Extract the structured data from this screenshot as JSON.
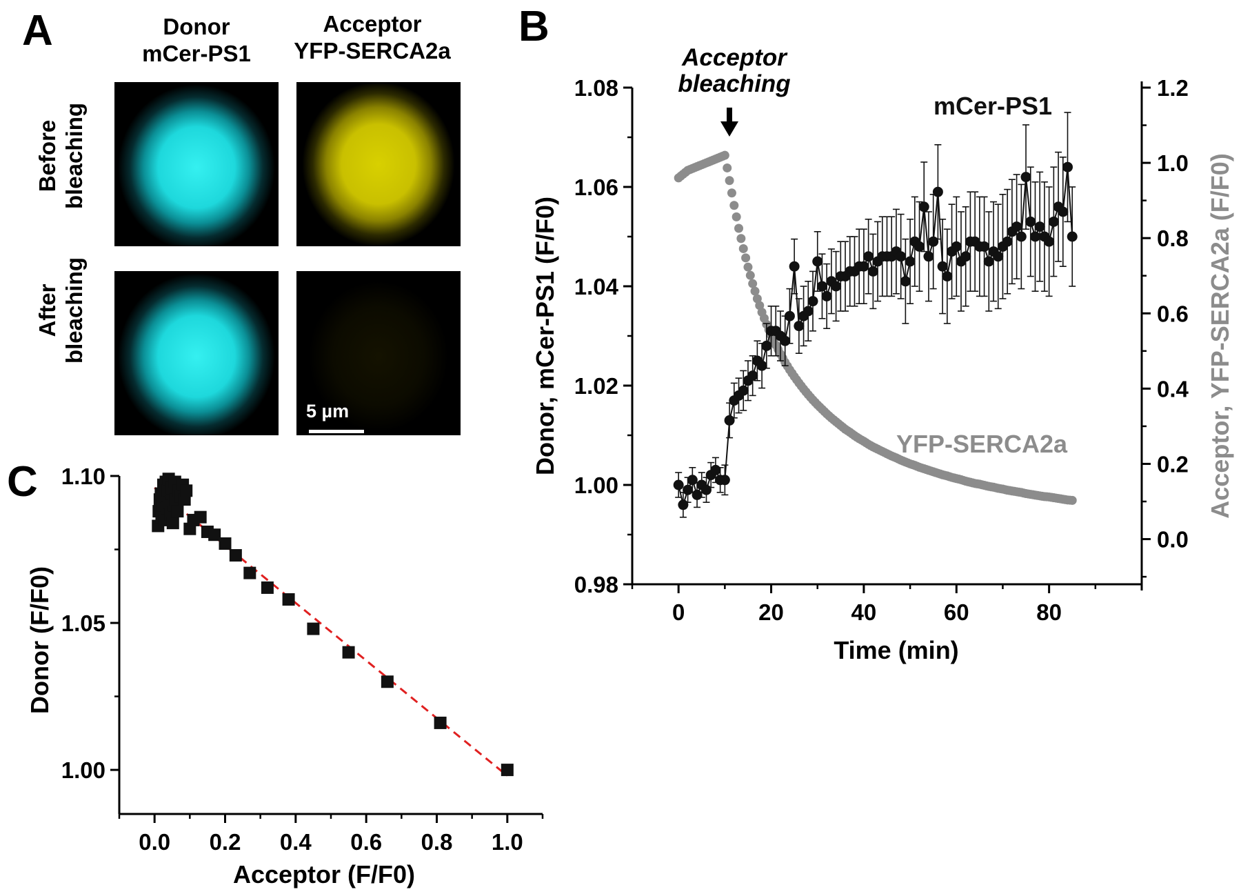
{
  "panel_a": {
    "letter": "A",
    "col_donor_line1": "Donor",
    "col_donor_line2": "mCer-PS1",
    "col_acceptor_line1": "Acceptor",
    "col_acceptor_line2": "YFP-SERCA2a",
    "row_before_line1": "Before",
    "row_before_line2": "bleaching",
    "row_after_line1": "After",
    "row_after_line2": "bleaching",
    "scalebar_label": "5 µm",
    "colors": {
      "donor": "#22e4e8",
      "acceptor": "#c8c000"
    }
  },
  "panel_b_letter": "B",
  "panel_c_letter": "C",
  "chart_data": [
    {
      "id": "B",
      "type": "scatter",
      "xlabel": "Time (min)",
      "ylabel": "Donor, mCer-PS1 (F/F0)",
      "y2label": "Acceptor, YFP-SERCA2a (F/F0)",
      "xlim": [
        -10,
        100
      ],
      "ylim": [
        0.98,
        1.08
      ],
      "y2lim": [
        -0.12,
        1.2
      ],
      "xticks": [
        0,
        20,
        40,
        60,
        80
      ],
      "xtick_labels": [
        "0",
        "20",
        "40",
        "60",
        "80"
      ],
      "yticks": [
        0.98,
        1.0,
        1.02,
        1.04,
        1.06,
        1.08
      ],
      "ytick_labels": [
        "0.98",
        "1.00",
        "1.02",
        "1.04",
        "1.06",
        "1.08"
      ],
      "y2ticks": [
        0.0,
        0.2,
        0.4,
        0.6,
        0.8,
        1.0,
        1.2
      ],
      "y2tick_labels": [
        "0.0",
        "0.2",
        "0.4",
        "0.6",
        "0.8",
        "1.0",
        "1.2"
      ],
      "annotation_line1": "Acceptor",
      "annotation_line2": "bleaching",
      "annotation_x": 10,
      "label_donor": "mCer-PS1",
      "label_acceptor": "YFP-SERCA2a",
      "colors": {
        "donor": "#111111",
        "acceptor": "#8c8c8c"
      },
      "series": [
        {
          "name": "mCer-PS1",
          "axis": "left",
          "x": [
            0,
            1,
            2,
            3,
            4,
            5,
            6,
            7,
            8,
            9,
            10,
            11,
            12,
            13,
            14,
            15,
            16,
            17,
            18,
            19,
            20,
            21,
            22,
            23,
            24,
            25,
            26,
            27,
            28,
            29,
            30,
            31,
            32,
            33,
            34,
            35,
            36,
            37,
            38,
            39,
            40,
            41,
            42,
            43,
            44,
            45,
            46,
            47,
            48,
            49,
            50,
            51,
            52,
            53,
            54,
            55,
            56,
            57,
            58,
            59,
            60,
            61,
            62,
            63,
            64,
            65,
            66,
            67,
            68,
            69,
            70,
            71,
            72,
            73,
            74,
            75,
            76,
            77,
            78,
            79,
            80,
            81,
            82,
            83,
            84,
            85
          ],
          "y": [
            1.0,
            0.996,
            0.999,
            1.001,
            0.998,
            1.0,
            0.999,
            1.002,
            1.003,
            1.001,
            1.001,
            1.013,
            1.017,
            1.018,
            1.019,
            1.021,
            1.022,
            1.025,
            1.024,
            1.028,
            1.031,
            1.031,
            1.03,
            1.029,
            1.034,
            1.044,
            1.032,
            1.034,
            1.035,
            1.037,
            1.045,
            1.04,
            1.038,
            1.041,
            1.04,
            1.042,
            1.042,
            1.043,
            1.043,
            1.044,
            1.044,
            1.046,
            1.043,
            1.045,
            1.046,
            1.046,
            1.046,
            1.047,
            1.046,
            1.041,
            1.045,
            1.049,
            1.048,
            1.056,
            1.046,
            1.049,
            1.059,
            1.044,
            1.042,
            1.047,
            1.048,
            1.045,
            1.046,
            1.049,
            1.049,
            1.048,
            1.048,
            1.045,
            1.047,
            1.046,
            1.048,
            1.049,
            1.051,
            1.052,
            1.05,
            1.062,
            1.053,
            1.05,
            1.052,
            1.05,
            1.049,
            1.053,
            1.056,
            1.055,
            1.064,
            1.05
          ],
          "err": [
            0.0025,
            0.0025,
            0.0025,
            0.0025,
            0.0025,
            0.0025,
            0.0025,
            0.0025,
            0.0025,
            0.0025,
            0.003,
            0.0035,
            0.0035,
            0.0035,
            0.004,
            0.004,
            0.004,
            0.004,
            0.0045,
            0.0045,
            0.005,
            0.005,
            0.005,
            0.005,
            0.0055,
            0.0055,
            0.0055,
            0.006,
            0.006,
            0.006,
            0.006,
            0.0065,
            0.0065,
            0.0065,
            0.007,
            0.007,
            0.007,
            0.007,
            0.007,
            0.0075,
            0.0075,
            0.0075,
            0.0075,
            0.008,
            0.008,
            0.008,
            0.008,
            0.0085,
            0.0085,
            0.0085,
            0.0085,
            0.009,
            0.009,
            0.009,
            0.009,
            0.0095,
            0.0095,
            0.0095,
            0.0095,
            0.0095,
            0.01,
            0.01,
            0.01,
            0.01,
            0.01,
            0.01,
            0.01,
            0.01,
            0.01,
            0.0105,
            0.0105,
            0.0105,
            0.0105,
            0.0105,
            0.0105,
            0.0105,
            0.011,
            0.011,
            0.011,
            0.011,
            0.011,
            0.011,
            0.011,
            0.011,
            0.011,
            0.01
          ]
        },
        {
          "name": "YFP-SERCA2a",
          "axis": "right",
          "x": [
            0,
            1,
            2,
            3,
            4,
            5,
            6,
            7,
            8,
            9,
            10,
            11,
            12,
            13,
            14,
            15,
            16,
            17,
            18,
            19,
            20,
            21,
            22,
            23,
            24,
            25,
            26,
            27,
            28,
            29,
            30,
            31,
            32,
            33,
            34,
            35,
            36,
            37,
            38,
            39,
            40,
            41,
            42,
            43,
            44,
            45,
            46,
            47,
            48,
            49,
            50,
            51,
            52,
            53,
            54,
            55,
            56,
            57,
            58,
            59,
            60,
            61,
            62,
            63,
            64,
            65,
            66,
            67,
            68,
            69,
            70,
            71,
            72,
            73,
            74,
            75,
            76,
            77,
            78,
            79,
            80,
            81,
            82,
            83,
            84,
            85
          ],
          "y": [
            0.96,
            0.97,
            0.98,
            0.985,
            0.99,
            0.995,
            1.0,
            1.005,
            1.01,
            1.015,
            1.02,
            0.953,
            0.887,
            0.826,
            0.772,
            0.723,
            0.679,
            0.639,
            0.603,
            0.571,
            0.542,
            0.516,
            0.492,
            0.47,
            0.45,
            0.432,
            0.415,
            0.399,
            0.384,
            0.37,
            0.357,
            0.345,
            0.333,
            0.322,
            0.312,
            0.302,
            0.292,
            0.284,
            0.275,
            0.267,
            0.26,
            0.252,
            0.245,
            0.239,
            0.233,
            0.227,
            0.221,
            0.216,
            0.21,
            0.205,
            0.2,
            0.196,
            0.191,
            0.187,
            0.183,
            0.179,
            0.175,
            0.171,
            0.168,
            0.164,
            0.161,
            0.158,
            0.154,
            0.151,
            0.148,
            0.146,
            0.143,
            0.14,
            0.138,
            0.135,
            0.133,
            0.13,
            0.128,
            0.126,
            0.124,
            0.121,
            0.119,
            0.117,
            0.115,
            0.113,
            0.112,
            0.11,
            0.108,
            0.106,
            0.104,
            0.103
          ]
        }
      ]
    },
    {
      "id": "C",
      "type": "scatter",
      "xlabel": "Acceptor (F/F0)",
      "ylabel": "Donor (F/F0)",
      "xlim": [
        -0.1,
        1.1
      ],
      "ylim": [
        0.985,
        1.1
      ],
      "xticks": [
        0.0,
        0.2,
        0.4,
        0.6,
        0.8,
        1.0
      ],
      "xtick_labels": [
        "0.0",
        "0.2",
        "0.4",
        "0.6",
        "0.8",
        "1.0"
      ],
      "yticks": [
        1.0,
        1.05,
        1.1
      ],
      "ytick_labels": [
        "1.00",
        "1.05",
        "1.10"
      ],
      "fit": {
        "x": [
          0.0,
          1.0
        ],
        "y": [
          1.096,
          0.998
        ],
        "color": "#e02020",
        "style": "dashed"
      },
      "marker_color": "#111111",
      "x": [
        0.01,
        0.012,
        0.015,
        0.018,
        0.02,
        0.022,
        0.025,
        0.028,
        0.03,
        0.032,
        0.035,
        0.038,
        0.04,
        0.042,
        0.045,
        0.048,
        0.05,
        0.052,
        0.055,
        0.058,
        0.06,
        0.065,
        0.07,
        0.075,
        0.08,
        0.085,
        0.09,
        0.1,
        0.11,
        0.13,
        0.15,
        0.17,
        0.2,
        0.23,
        0.27,
        0.32,
        0.38,
        0.45,
        0.55,
        0.66,
        0.81,
        1.0
      ],
      "y": [
        1.083,
        1.088,
        1.092,
        1.094,
        1.086,
        1.09,
        1.097,
        1.085,
        1.093,
        1.098,
        1.089,
        1.095,
        1.099,
        1.091,
        1.087,
        1.094,
        1.096,
        1.084,
        1.09,
        1.098,
        1.092,
        1.088,
        1.095,
        1.093,
        1.097,
        1.092,
        1.095,
        1.082,
        1.085,
        1.086,
        1.081,
        1.08,
        1.077,
        1.073,
        1.067,
        1.062,
        1.058,
        1.048,
        1.04,
        1.03,
        1.016,
        1.0
      ]
    }
  ]
}
